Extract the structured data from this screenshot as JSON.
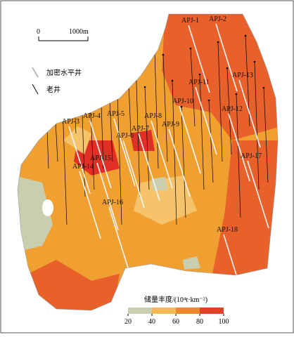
{
  "scale_bar": {
    "start": "0",
    "end": "1000m"
  },
  "legend": {
    "items": [
      {
        "label": "加密水平井"
      },
      {
        "label": "老井"
      }
    ]
  },
  "wells": [
    "APJ-1",
    "APJ-2",
    "APJ-3",
    "APJ-4",
    "APJ-5",
    "APJ-6",
    "APJ-7",
    "APJ-8",
    "APJ-9",
    "APJ-10",
    "APJ-11",
    "APJ-12",
    "APJ-13",
    "APJ-14",
    "APJ-15",
    "APJ-16",
    "APJ-17",
    "APJ-18"
  ],
  "colorbar": {
    "title": "储量丰度/(10⁴t·km⁻²)",
    "ticks": [
      20,
      40,
      60,
      80,
      100
    ],
    "colors": [
      "#c9cfae",
      "#f5b955",
      "#ee8a2c",
      "#e2412a"
    ]
  }
}
